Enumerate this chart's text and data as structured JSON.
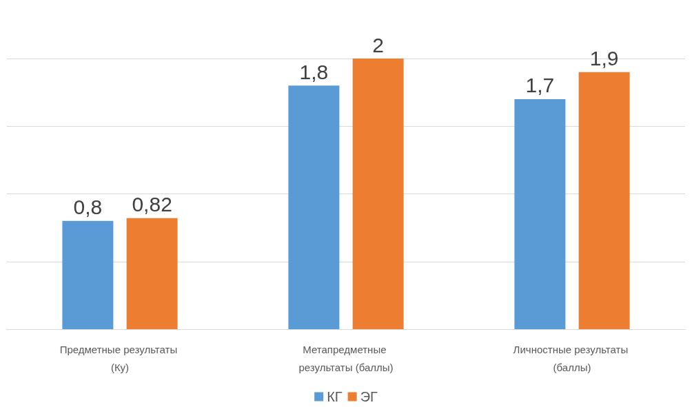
{
  "chart_data": {
    "type": "bar",
    "categories": [
      "Предметные результаты (Ку)",
      "Метапредметные результаты (баллы)",
      "Личностные результаты (баллы)"
    ],
    "series": [
      {
        "name": "КГ",
        "color": "#5b9bd5",
        "values": [
          0.8,
          1.8,
          1.7
        ],
        "value_labels": [
          "0,8",
          "1,8",
          "1,7"
        ]
      },
      {
        "name": "ЭГ",
        "color": "#ed7d31",
        "values": [
          0.82,
          2,
          1.9
        ],
        "value_labels": [
          "0,82",
          "2",
          "1,9"
        ]
      }
    ],
    "yticks": [
      0,
      0.5,
      1,
      1.5,
      2
    ],
    "tick_labels": "x",
    "grid": "y",
    "legend": "bottom"
  }
}
